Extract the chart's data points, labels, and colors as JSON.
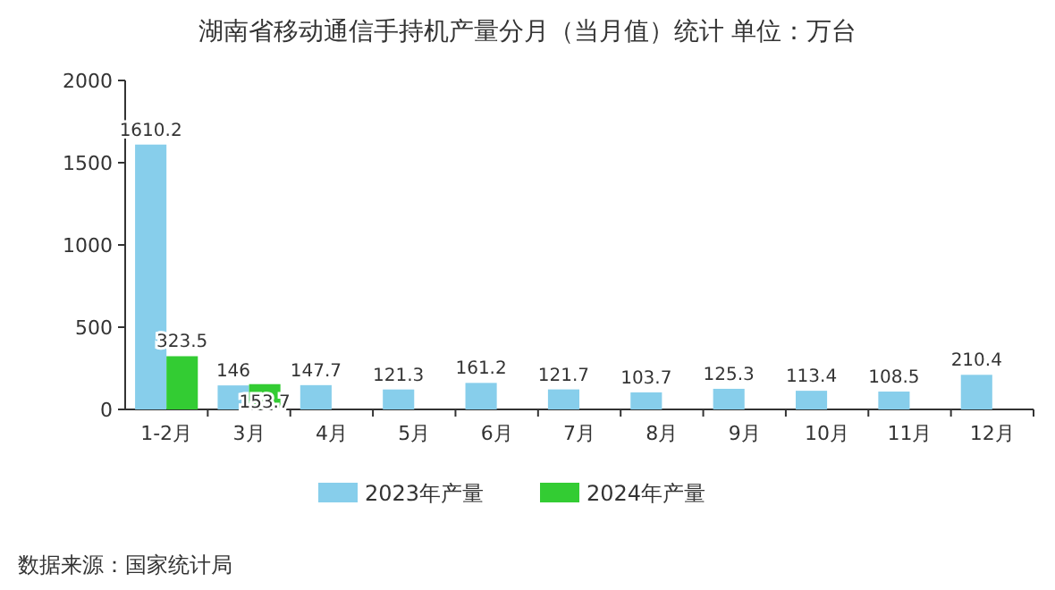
{
  "chart_data": {
    "type": "bar",
    "title": "湖南省移动通信手持机产量分月（当月值）统计  单位：万台",
    "categories": [
      "1-2月",
      "3月",
      "4月",
      "5月",
      "6月",
      "7月",
      "8月",
      "9月",
      "10月",
      "11月",
      "12月"
    ],
    "series": [
      {
        "name": "2023年产量",
        "color": "#87ceeb",
        "values": [
          1610.2,
          146,
          147.7,
          121.3,
          161.2,
          121.7,
          103.7,
          125.3,
          113.4,
          108.5,
          210.4
        ]
      },
      {
        "name": "2024年产量",
        "color": "#33cc33",
        "values": [
          323.5,
          153.7,
          null,
          null,
          null,
          null,
          null,
          null,
          null,
          null,
          null
        ]
      }
    ],
    "ylim": [
      0,
      2000
    ],
    "yticks": [
      0,
      500,
      1000,
      1500,
      2000
    ],
    "data_labels": true,
    "legend": "bottom",
    "annotations": [
      "数据来源：国家统计局"
    ]
  }
}
